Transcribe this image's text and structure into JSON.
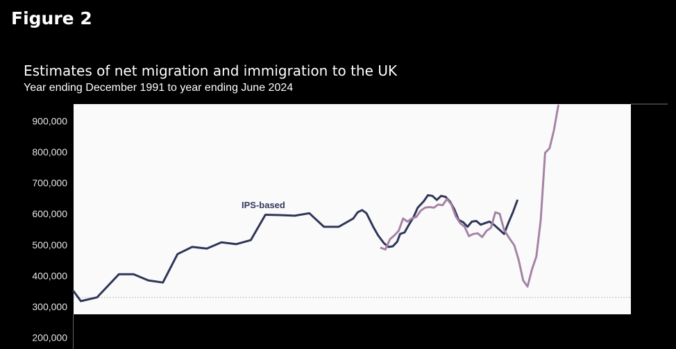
{
  "figure_label": "Figure 2",
  "chart_data": {
    "type": "line",
    "title": "Estimates of net migration and immigration to the UK",
    "subtitle": "Year ending December 1991 to year ending June 2024",
    "xlabel": "",
    "ylabel": "",
    "ylim": [
      200000,
      950000
    ],
    "y_ticks": [
      {
        "value": 900000,
        "label": "900,000"
      },
      {
        "value": 800000,
        "label": "800,000"
      },
      {
        "value": 700000,
        "label": "700,000"
      },
      {
        "value": 600000,
        "label": "600,000"
      },
      {
        "value": 500000,
        "label": "500,000"
      },
      {
        "value": 400000,
        "label": "400,000"
      },
      {
        "value": 300000,
        "label": "300,000"
      },
      {
        "value": 200000,
        "label": "200,000"
      }
    ],
    "grid": false,
    "plot_background": "#fafafa",
    "page_background": "#000000",
    "reference_line": {
      "value": 330000,
      "color": "#bbbbbb",
      "style": "dashed"
    },
    "annotations": [
      {
        "text": "IPS-based",
        "color": "#33395c"
      }
    ],
    "series": [
      {
        "color": "#2e3557",
        "points": [
          [
            1991.9,
            350000
          ],
          [
            1992.4,
            318000
          ],
          [
            1993.5,
            330000
          ],
          [
            1995.0,
            405000
          ],
          [
            1996.0,
            405000
          ],
          [
            1997.0,
            385000
          ],
          [
            1998.0,
            378000
          ],
          [
            1999.0,
            470000
          ],
          [
            2000.0,
            493000
          ],
          [
            2001.0,
            488000
          ],
          [
            2002.0,
            508000
          ],
          [
            2003.0,
            502000
          ],
          [
            2004.0,
            515000
          ],
          [
            2005.0,
            597000
          ],
          [
            2006.0,
            596000
          ],
          [
            2007.0,
            594000
          ],
          [
            2008.0,
            602000
          ],
          [
            2009.0,
            558000
          ],
          [
            2010.0,
            558000
          ],
          [
            2011.0,
            585000
          ],
          [
            2011.3,
            605000
          ],
          [
            2011.6,
            612000
          ],
          [
            2011.9,
            602000
          ],
          [
            2012.4,
            555000
          ],
          [
            2012.7,
            530000
          ],
          [
            2013.1,
            505000
          ],
          [
            2013.4,
            493000
          ],
          [
            2013.7,
            495000
          ],
          [
            2014.0,
            510000
          ],
          [
            2014.2,
            535000
          ],
          [
            2014.5,
            540000
          ],
          [
            2014.8,
            565000
          ],
          [
            2015.1,
            588000
          ],
          [
            2015.4,
            620000
          ],
          [
            2015.8,
            640000
          ],
          [
            2016.1,
            660000
          ],
          [
            2016.4,
            658000
          ],
          [
            2016.7,
            645000
          ],
          [
            2017.0,
            658000
          ],
          [
            2017.3,
            655000
          ],
          [
            2017.6,
            640000
          ],
          [
            2017.9,
            615000
          ],
          [
            2018.2,
            580000
          ],
          [
            2018.5,
            573000
          ],
          [
            2018.8,
            558000
          ],
          [
            2019.1,
            575000
          ],
          [
            2019.4,
            577000
          ],
          [
            2019.7,
            565000
          ],
          [
            2020.0,
            570000
          ],
          [
            2020.3,
            575000
          ],
          [
            2020.6,
            565000
          ],
          [
            2021.0,
            548000
          ],
          [
            2021.3,
            535000
          ],
          [
            2021.6,
            572000
          ],
          [
            2021.9,
            605000
          ],
          [
            2022.2,
            643000
          ]
        ]
      },
      {
        "color": "#a583a5",
        "points": [
          [
            2012.9,
            490000
          ],
          [
            2013.2,
            485000
          ],
          [
            2013.5,
            518000
          ],
          [
            2013.8,
            530000
          ],
          [
            2014.1,
            545000
          ],
          [
            2014.4,
            585000
          ],
          [
            2014.7,
            575000
          ],
          [
            2015.0,
            585000
          ],
          [
            2015.3,
            590000
          ],
          [
            2015.6,
            610000
          ],
          [
            2015.9,
            620000
          ],
          [
            2016.2,
            622000
          ],
          [
            2016.5,
            620000
          ],
          [
            2016.8,
            630000
          ],
          [
            2017.1,
            628000
          ],
          [
            2017.4,
            648000
          ],
          [
            2017.7,
            630000
          ],
          [
            2018.0,
            592000
          ],
          [
            2018.3,
            570000
          ],
          [
            2018.6,
            558000
          ],
          [
            2018.9,
            528000
          ],
          [
            2019.2,
            535000
          ],
          [
            2019.5,
            537000
          ],
          [
            2019.8,
            525000
          ],
          [
            2020.1,
            545000
          ],
          [
            2020.4,
            555000
          ],
          [
            2020.7,
            605000
          ],
          [
            2021.0,
            600000
          ],
          [
            2021.3,
            548000
          ],
          [
            2021.6,
            525000
          ],
          [
            2022.0,
            498000
          ],
          [
            2022.3,
            450000
          ],
          [
            2022.6,
            385000
          ],
          [
            2022.9,
            365000
          ],
          [
            2023.2,
            420000
          ],
          [
            2023.5,
            462000
          ],
          [
            2023.8,
            580000
          ],
          [
            2024.1,
            797000
          ],
          [
            2024.4,
            812000
          ],
          [
            2024.7,
            870000
          ],
          [
            2025.0,
            950000
          ]
        ]
      }
    ]
  }
}
